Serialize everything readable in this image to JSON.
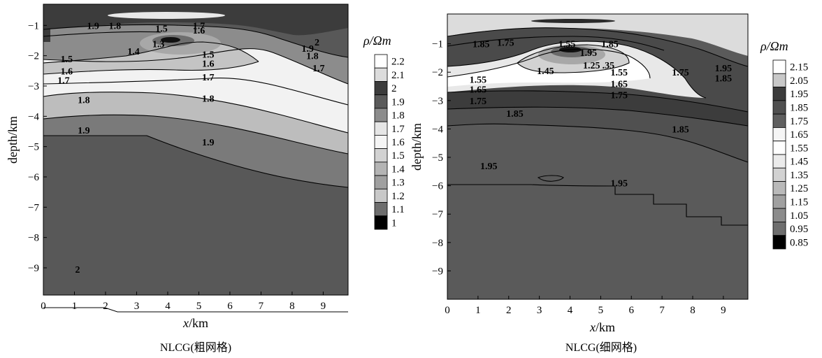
{
  "chart_data": [
    {
      "type": "contour",
      "caption": "NLCG(粗网格)",
      "xlabel_var": "x",
      "xlabel_unit": "/km",
      "ylabel": "depth/km",
      "xlim": [
        0,
        9.8
      ],
      "ylim": [
        -9.9,
        -0.3
      ],
      "x_ticks": [
        "0",
        "1",
        "2",
        "3",
        "4",
        "5",
        "6",
        "7",
        "8",
        "9"
      ],
      "y_ticks": [
        "-1",
        "-2",
        "-3",
        "-4",
        "-5",
        "-6",
        "-7",
        "-8",
        "-9"
      ],
      "colorbar_title": "ρ/Ωm",
      "colorbar_levels": [
        "2.2",
        "2.1",
        "2",
        "1.9",
        "1.8",
        "1.7",
        "1.6",
        "1.5",
        "1.4",
        "1.3",
        "1.2",
        "1.1",
        "1"
      ],
      "colorbar_fills": [
        "#ffffff",
        "#dcdcdc",
        "#3c3c3c",
        "#5a5a5a",
        "#8c8c8c",
        "#e6e6e6",
        "#f5f5f5",
        "#d2d2d2",
        "#b4b4b4",
        "#a0a0a0",
        "#c8c8c8",
        "#6e6e6e",
        "#000000"
      ],
      "contour_labels": [
        {
          "text": "1.9",
          "x": 1.6,
          "y": -1.0
        },
        {
          "text": "1.8",
          "x": 2.3,
          "y": -1.0
        },
        {
          "text": "1.5",
          "x": 3.8,
          "y": -1.1
        },
        {
          "text": "1.7",
          "x": 5.0,
          "y": -1.0
        },
        {
          "text": "1.6",
          "x": 5.0,
          "y": -1.15
        },
        {
          "text": "1.3",
          "x": 3.7,
          "y": -1.6
        },
        {
          "text": "1.4",
          "x": 2.9,
          "y": -1.85
        },
        {
          "text": "2",
          "x": 8.8,
          "y": -1.55
        },
        {
          "text": "1.9",
          "x": 8.5,
          "y": -1.75
        },
        {
          "text": "1.8",
          "x": 8.65,
          "y": -2.0
        },
        {
          "text": "1.7",
          "x": 8.85,
          "y": -2.4
        },
        {
          "text": "1.5",
          "x": 0.75,
          "y": -2.1
        },
        {
          "text": "1.6",
          "x": 0.75,
          "y": -2.5
        },
        {
          "text": "1.7",
          "x": 0.65,
          "y": -2.8
        },
        {
          "text": "1.5",
          "x": 5.3,
          "y": -1.95
        },
        {
          "text": "1.6",
          "x": 5.3,
          "y": -2.25
        },
        {
          "text": "1.7",
          "x": 5.3,
          "y": -2.7
        },
        {
          "text": "1.8",
          "x": 1.3,
          "y": -3.45
        },
        {
          "text": "1.8",
          "x": 5.3,
          "y": -3.4
        },
        {
          "text": "1.9",
          "x": 1.3,
          "y": -4.45
        },
        {
          "text": "1.9",
          "x": 5.3,
          "y": -4.85
        },
        {
          "text": "2",
          "x": 1.1,
          "y": -9.05
        }
      ]
    },
    {
      "type": "contour",
      "caption": "NLCG(细网格)",
      "xlabel_var": "x",
      "xlabel_unit": "/km",
      "ylabel": "depth/km",
      "xlim": [
        0,
        9.8
      ],
      "ylim": [
        -10.0,
        0.05
      ],
      "x_ticks": [
        "0",
        "1",
        "2",
        "3",
        "4",
        "5",
        "6",
        "7",
        "8",
        "9"
      ],
      "y_ticks": [
        "-1",
        "-2",
        "-3",
        "-4",
        "-5",
        "-6",
        "-7",
        "-8",
        "-9"
      ],
      "colorbar_title": "ρ/Ωm",
      "colorbar_levels": [
        "2.15",
        "2.05",
        "1.95",
        "1.85",
        "1.75",
        "1.65",
        "1.55",
        "1.45",
        "1.35",
        "1.25",
        "1.15",
        "1.05",
        "0.95",
        "0.85"
      ],
      "colorbar_fills": [
        "#ffffff",
        "#c8c8c8",
        "#3c3c3c",
        "#505050",
        "#5f5f5f",
        "#f5f5f5",
        "#ffffff",
        "#ebebeb",
        "#d2d2d2",
        "#b9b9b9",
        "#a0a0a0",
        "#8c8c8c",
        "#6e6e6e",
        "#000000"
      ],
      "contour_labels": [
        {
          "text": "1.85",
          "x": 1.1,
          "y": -1.0
        },
        {
          "text": "1.75",
          "x": 1.9,
          "y": -0.95
        },
        {
          "text": "1.55",
          "x": 3.9,
          "y": -1.0
        },
        {
          "text": "1.85",
          "x": 5.3,
          "y": -1.0
        },
        {
          "text": "1.95",
          "x": 4.6,
          "y": -1.3
        },
        {
          "text": "1.25",
          "x": 4.7,
          "y": -1.75
        },
        {
          "text": ".35",
          "x": 5.25,
          "y": -1.75
        },
        {
          "text": "1.45",
          "x": 3.2,
          "y": -1.95
        },
        {
          "text": "1.55",
          "x": 1.0,
          "y": -2.25
        },
        {
          "text": "1.65",
          "x": 1.0,
          "y": -2.6
        },
        {
          "text": "1.75",
          "x": 1.0,
          "y": -3.0
        },
        {
          "text": "1.55",
          "x": 5.6,
          "y": -2.0
        },
        {
          "text": "1.65",
          "x": 5.6,
          "y": -2.4
        },
        {
          "text": "1.75",
          "x": 5.6,
          "y": -2.8
        },
        {
          "text": "1.75",
          "x": 7.6,
          "y": -2.0
        },
        {
          "text": "1.95",
          "x": 9.0,
          "y": -1.85
        },
        {
          "text": "1.85",
          "x": 9.0,
          "y": -2.2
        },
        {
          "text": "1.85",
          "x": 2.2,
          "y": -3.45
        },
        {
          "text": "1.85",
          "x": 7.6,
          "y": -4.0
        },
        {
          "text": "1.95",
          "x": 1.35,
          "y": -5.3
        },
        {
          "text": "1.95",
          "x": 5.6,
          "y": -5.9
        }
      ]
    }
  ]
}
